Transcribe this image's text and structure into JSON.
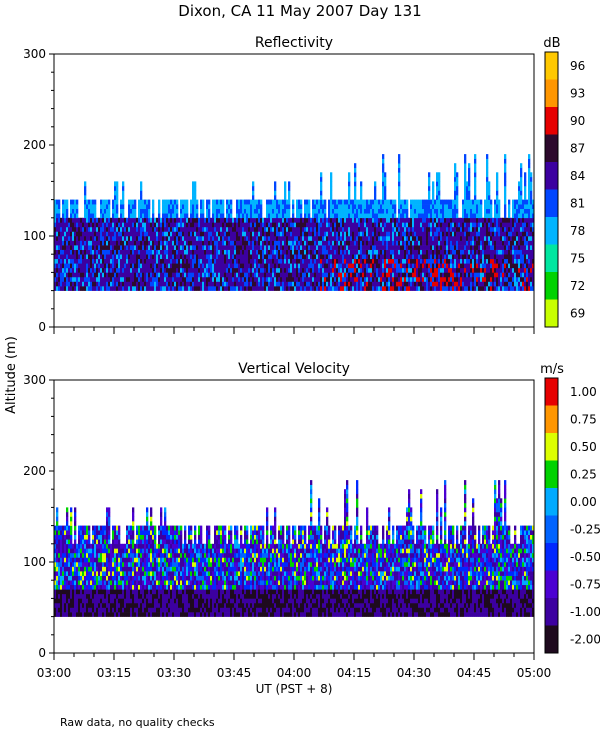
{
  "title": "Dixon, CA 11 May 2007  Day 131",
  "ylabel": "Altitude (m)",
  "xlabel": "UT  (PST + 8)",
  "footnote": "Raw data, no quality checks",
  "chart_data": [
    {
      "type": "heatmap",
      "title": "Reflectivity",
      "colorbar_label": "dB",
      "colorbar_ticks": [
        "69",
        "72",
        "75",
        "78",
        "81",
        "84",
        "87",
        "90",
        "93",
        "96"
      ],
      "colorbar_colors": [
        "#c8ff00",
        "#00d200",
        "#00e6a0",
        "#00b4ff",
        "#0046ff",
        "#3c00a0",
        "#2d0a2d",
        "#e60000",
        "#ff9600",
        "#ffc800"
      ],
      "x_ticks": [
        "03:00",
        "03:15",
        "03:30",
        "03:45",
        "04:00",
        "04:15",
        "04:30",
        "04:45",
        "05:00"
      ],
      "xlim": [
        "03:00",
        "05:00"
      ],
      "y_ticks": [
        "0",
        "100",
        "200",
        "300"
      ],
      "ylim": [
        0,
        300
      ],
      "data_bottom_m": 40,
      "data_top_m": 140,
      "max_echo_top_m": 200
    },
    {
      "type": "heatmap",
      "title": "Vertical Velocity",
      "colorbar_label": "m/s",
      "colorbar_ticks": [
        "-2.00",
        "-1.00",
        "-0.75",
        "-0.50",
        "-0.25",
        "0.00",
        "0.25",
        "0.50",
        "0.75",
        "1.00"
      ],
      "colorbar_colors": [
        "#1e0a1e",
        "#3c00a0",
        "#4b00d2",
        "#0028ff",
        "#0064ff",
        "#00aaff",
        "#00d200",
        "#dcff00",
        "#ff9600",
        "#e60000"
      ],
      "x_ticks": [
        "03:00",
        "03:15",
        "03:30",
        "03:45",
        "04:00",
        "04:15",
        "04:30",
        "04:45",
        "05:00"
      ],
      "xlim": [
        "03:00",
        "05:00"
      ],
      "y_ticks": [
        "0",
        "100",
        "200",
        "300"
      ],
      "ylim": [
        0,
        300
      ],
      "data_bottom_m": 40,
      "data_top_m": 140,
      "max_echo_top_m": 200
    }
  ]
}
